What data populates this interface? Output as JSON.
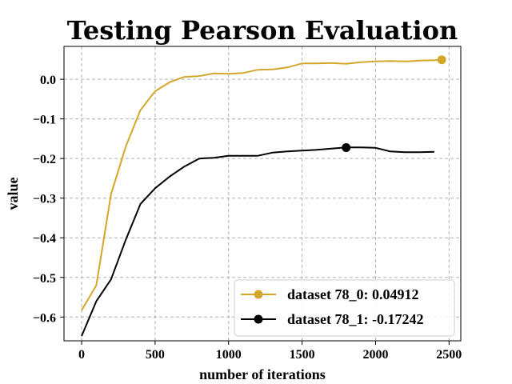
{
  "chart_data": {
    "type": "line",
    "title": "Testing Pearson Evaluation",
    "xlabel": "number of iterations",
    "ylabel": "value",
    "xlim": [
      -120,
      2580
    ],
    "ylim": [
      -0.66,
      0.083
    ],
    "xticks": [
      0,
      500,
      1000,
      1500,
      2000,
      2500
    ],
    "xtick_labels": [
      "0",
      "500",
      "1000",
      "1500",
      "2000",
      "2500"
    ],
    "yticks": [
      -0.6,
      -0.5,
      -0.4,
      -0.3,
      -0.2,
      -0.1,
      0.0
    ],
    "ytick_labels": [
      "−0.6",
      "−0.5",
      "−0.4",
      "−0.3",
      "−0.2",
      "−0.1",
      "0.0"
    ],
    "grid": true,
    "legend_position": "lower-right",
    "series": [
      {
        "name": "dataset 78_0: 0.04912",
        "color": "#d4a62a",
        "x": [
          0,
          100,
          200,
          300,
          400,
          500,
          600,
          700,
          800,
          900,
          1000,
          1100,
          1200,
          1300,
          1400,
          1500,
          1600,
          1700,
          1800,
          1900,
          2000,
          2100,
          2200,
          2300,
          2400,
          2450
        ],
        "y": [
          -0.583,
          -0.52,
          -0.29,
          -0.17,
          -0.078,
          -0.03,
          -0.007,
          0.006,
          0.008,
          0.015,
          0.014,
          0.016,
          0.024,
          0.025,
          0.03,
          0.04,
          0.04,
          0.041,
          0.039,
          0.043,
          0.045,
          0.046,
          0.045,
          0.047,
          0.048,
          0.049
        ],
        "highlight": {
          "x": 2450,
          "y": 0.04912
        }
      },
      {
        "name": "dataset 78_1: -0.17242",
        "color": "#000000",
        "x": [
          0,
          100,
          200,
          300,
          400,
          500,
          600,
          700,
          800,
          900,
          1000,
          1100,
          1200,
          1300,
          1400,
          1500,
          1600,
          1700,
          1800,
          1900,
          2000,
          2100,
          2200,
          2300,
          2400
        ],
        "y": [
          -0.648,
          -0.56,
          -0.505,
          -0.405,
          -0.315,
          -0.275,
          -0.245,
          -0.22,
          -0.2,
          -0.198,
          -0.193,
          -0.193,
          -0.193,
          -0.185,
          -0.182,
          -0.18,
          -0.178,
          -0.175,
          -0.172,
          -0.172,
          -0.173,
          -0.182,
          -0.184,
          -0.184,
          -0.183
        ],
        "highlight": {
          "x": 1800,
          "y": -0.17242
        }
      }
    ]
  }
}
